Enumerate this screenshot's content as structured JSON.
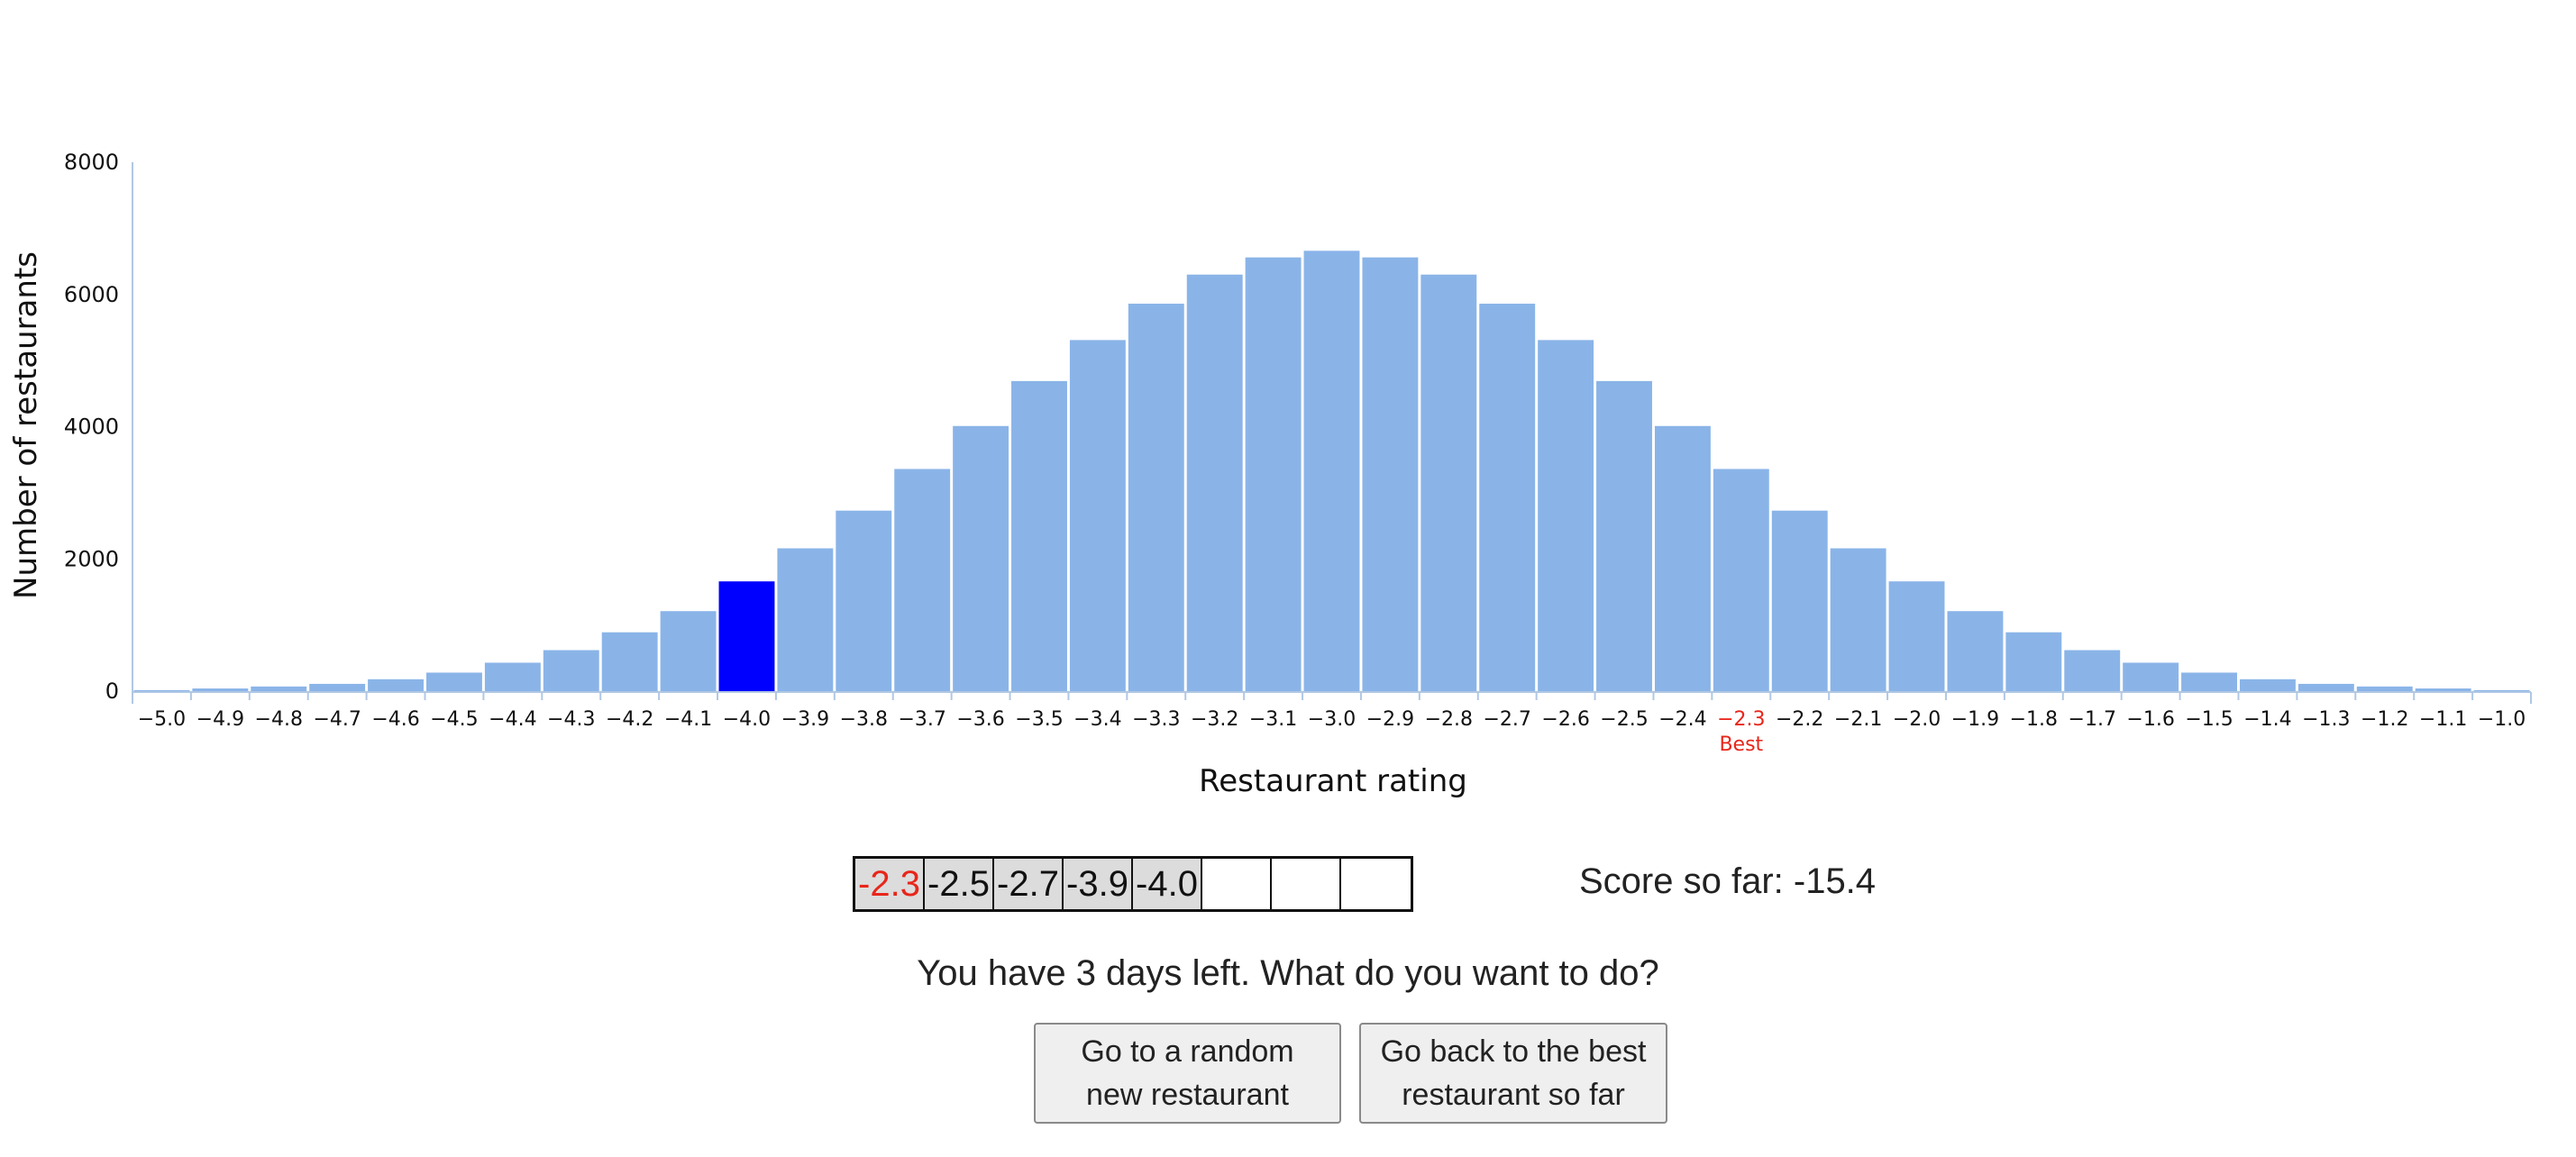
{
  "chart_data": {
    "type": "bar",
    "title": "",
    "xlabel": "Restaurant rating",
    "ylabel": "Number of restaurants",
    "ylim": [
      0,
      8000
    ],
    "yticks": [
      0,
      2000,
      4000,
      6000,
      8000
    ],
    "categories": [
      "−5.0",
      "−4.9",
      "−4.8",
      "−4.7",
      "−4.6",
      "−4.5",
      "−4.4",
      "−4.3",
      "−4.2",
      "−4.1",
      "−4.0",
      "−3.9",
      "−3.8",
      "−3.7",
      "−3.6",
      "−3.5",
      "−3.4",
      "−3.3",
      "−3.2",
      "−3.1",
      "−3.0",
      "−2.9",
      "−2.8",
      "−2.7",
      "−2.6",
      "−2.5",
      "−2.4",
      "−2.3",
      "−2.2",
      "−2.1",
      "−2.0",
      "−1.9",
      "−1.8",
      "−1.7",
      "−1.6",
      "−1.5",
      "−1.4",
      "−1.3",
      "−1.2",
      "−1.1",
      "−1.0"
    ],
    "values": [
      15,
      40,
      70,
      110,
      180,
      280,
      430,
      620,
      890,
      1210,
      1660,
      2160,
      2730,
      3360,
      4010,
      4690,
      5310,
      5860,
      6300,
      6560,
      6660,
      6560,
      6300,
      5860,
      5310,
      4690,
      4010,
      3360,
      2730,
      2160,
      1660,
      1210,
      890,
      620,
      430,
      280,
      180,
      110,
      70,
      40,
      15
    ],
    "highlighted_category": "−4.0",
    "best_category": "−2.3",
    "best_label": "Best",
    "grid": false,
    "colors": {
      "bar": "#8ab4e8",
      "highlight": "#0000ff",
      "best_tick": "#e8261a",
      "axis": "#b0c8e4"
    }
  },
  "history": {
    "cells": [
      "-2.3",
      "-2.5",
      "-2.7",
      "-3.9",
      "-4.0",
      "",
      "",
      ""
    ],
    "best_index": 0
  },
  "score": {
    "text": "Score so far: -15.4"
  },
  "prompt": {
    "text": "You have 3 days left. What do you want to do?"
  },
  "buttons": {
    "random": {
      "line1": "Go to a random",
      "line2": "new restaurant"
    },
    "best": {
      "line1": "Go back to the best",
      "line2": "restaurant so far"
    }
  }
}
